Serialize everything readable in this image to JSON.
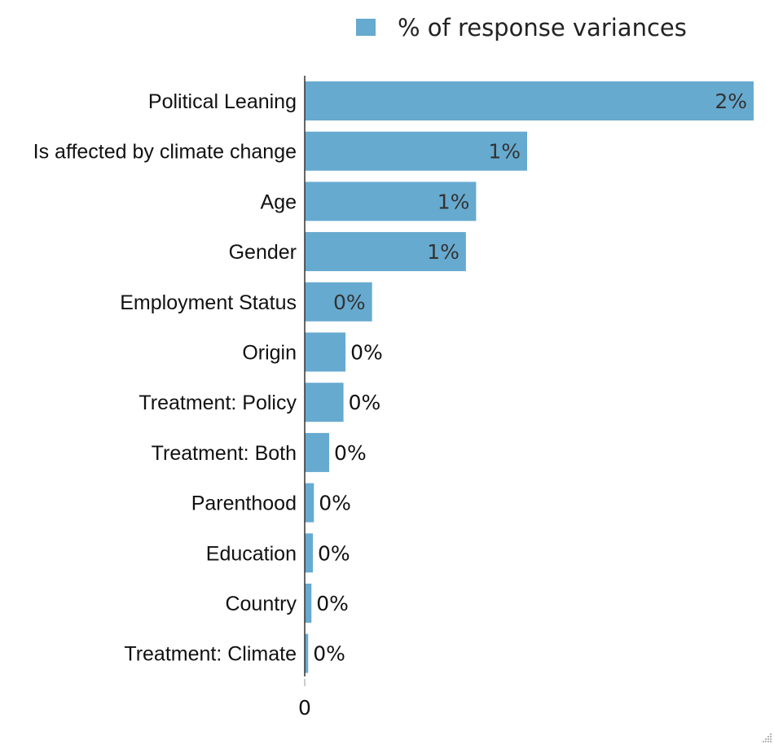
{
  "chart_data": {
    "type": "bar",
    "orientation": "horizontal",
    "categories": [
      "Political Leaning",
      "Is affected by climate change",
      "Age",
      "Gender",
      "Employment Status",
      "Origin",
      "Treatment: Policy",
      "Treatment: Both",
      "Parenthood",
      "Education",
      "Country",
      "Treatment: Climate"
    ],
    "series": [
      {
        "name": "% of response variances",
        "color": "#67aad0",
        "values": [
          2.2,
          1.09,
          0.84,
          0.79,
          0.33,
          0.2,
          0.19,
          0.12,
          0.045,
          0.04,
          0.033,
          0.017
        ],
        "labels": [
          "2%",
          "1%",
          "1%",
          "1%",
          "0%",
          "0%",
          "0%",
          "0%",
          "0%",
          "0%",
          "0%",
          "0%"
        ]
      }
    ],
    "x_ticks": [
      "0"
    ],
    "xlim": [
      0,
      2.2
    ],
    "legend_position": "top",
    "grid": false
  }
}
